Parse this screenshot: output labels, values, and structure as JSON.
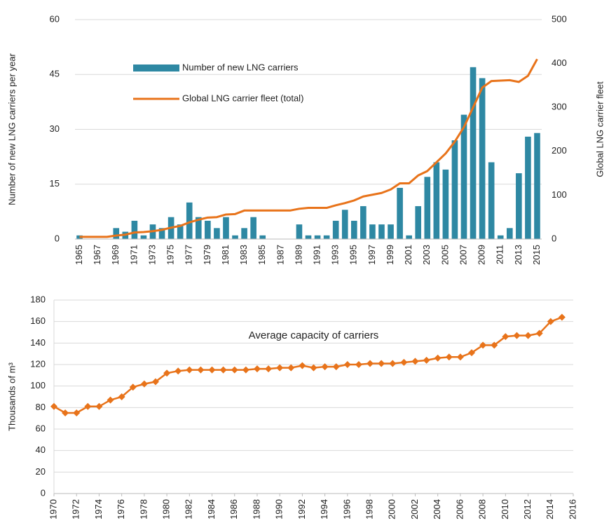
{
  "chart_data": [
    {
      "type": "bar",
      "y_label": "Number of new LNG carriers per year",
      "y2_label": "Global LNG carrier fleet",
      "categories": [
        "1965",
        null,
        "1967",
        null,
        "1969",
        null,
        "1971",
        null,
        "1973",
        null,
        "1975",
        null,
        "1977",
        null,
        "1979",
        null,
        "1981",
        null,
        "1983",
        null,
        "1985",
        null,
        "1987",
        null,
        "1989",
        null,
        "1991",
        null,
        "1993",
        null,
        "1995",
        null,
        "1997",
        null,
        "1999",
        null,
        "2001",
        null,
        "2003",
        null,
        "2005",
        null,
        "2007",
        null,
        "2009",
        null,
        "2011",
        null,
        "2013",
        null,
        "2015"
      ],
      "series": [
        {
          "name": "Number of new LNG carriers",
          "color": "#2e88a3",
          "values": [
            1,
            0,
            0,
            0,
            3,
            2,
            5,
            1,
            4,
            3,
            6,
            4,
            10,
            6,
            5,
            3,
            6,
            1,
            3,
            6,
            1,
            0,
            0,
            0,
            4,
            1,
            1,
            1,
            5,
            8,
            5,
            9,
            4,
            4,
            4,
            14,
            1,
            9,
            17,
            21,
            19,
            27,
            34,
            47,
            44,
            21,
            1,
            3,
            18,
            28,
            29
          ]
        },
        {
          "name": "Global LNG carrier fleet (total)",
          "color": "#e8731a",
          "type": "line",
          "axis": "y2",
          "values": [
            5,
            5,
            5,
            5,
            8,
            10,
            15,
            16,
            18,
            21,
            26,
            30,
            38,
            44,
            49,
            50,
            56,
            57,
            65,
            65,
            65,
            65,
            65,
            65,
            69,
            71,
            71,
            71,
            77,
            82,
            88,
            97,
            101,
            105,
            113,
            127,
            127,
            145,
            155,
            175,
            195,
            222,
            255,
            300,
            345,
            360,
            361,
            362,
            358,
            372,
            410
          ]
        }
      ],
      "ylim": [
        0,
        60
      ],
      "yticks": [
        0,
        15,
        30,
        45,
        60
      ],
      "y2lim": [
        0,
        500
      ],
      "y2ticks": [
        0,
        100,
        200,
        300,
        400,
        500
      ],
      "grid": true,
      "legend": "top-left"
    },
    {
      "type": "line",
      "annotation": "Average capacity of carriers",
      "y_label": "Thousands of m³",
      "color": "#e8731a",
      "marker": "diamond",
      "x": [
        1970,
        1971,
        1972,
        1973,
        1974,
        1975,
        1976,
        1977,
        1978,
        1979,
        1980,
        1981,
        1982,
        1983,
        1984,
        1985,
        1986,
        1987,
        1988,
        1989,
        1990,
        1991,
        1992,
        1993,
        1994,
        1995,
        1996,
        1997,
        1998,
        1999,
        2000,
        2001,
        2002,
        2003,
        2004,
        2005,
        2006,
        2007,
        2008,
        2009,
        2010,
        2011,
        2012,
        2013,
        2014,
        2015
      ],
      "values": [
        81,
        75,
        75,
        81,
        81,
        87,
        90,
        99,
        102,
        104,
        112,
        114,
        115,
        115,
        115,
        115,
        115,
        115,
        116,
        116,
        117,
        117,
        119,
        117,
        118,
        118,
        120,
        120,
        121,
        121,
        121,
        122,
        123,
        124,
        126,
        127,
        127,
        131,
        138,
        138,
        146,
        147,
        147,
        149,
        160,
        164
      ],
      "xlim": [
        1970,
        2016
      ],
      "xticks": [
        1970,
        1972,
        1974,
        1976,
        1978,
        1980,
        1982,
        1984,
        1986,
        1988,
        1990,
        1992,
        1994,
        1996,
        1998,
        2000,
        2002,
        2004,
        2006,
        2008,
        2010,
        2012,
        2014,
        2016
      ],
      "ylim": [
        0,
        180
      ],
      "yticks": [
        0,
        20,
        40,
        60,
        80,
        100,
        120,
        140,
        160,
        180
      ],
      "grid": true
    }
  ]
}
